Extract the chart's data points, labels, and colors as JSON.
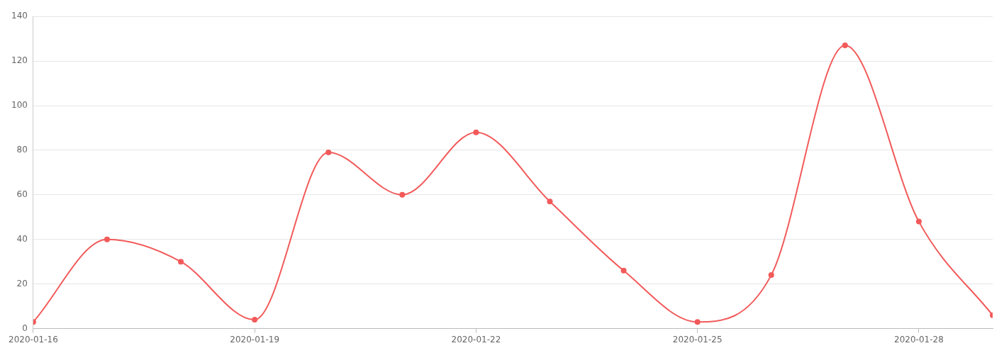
{
  "chart_data": {
    "type": "line",
    "x": [
      "2020-01-16",
      "2020-01-17",
      "2020-01-18",
      "2020-01-19",
      "2020-01-20",
      "2020-01-21",
      "2020-01-22",
      "2020-01-23",
      "2020-01-24",
      "2020-01-25",
      "2020-01-26",
      "2020-01-27",
      "2020-01-28",
      "2020-01-29"
    ],
    "series": [
      {
        "color": "#f25a5a",
        "values": [
          3,
          40,
          30,
          4,
          79,
          60,
          88,
          57,
          26,
          3,
          24,
          127,
          48,
          6
        ]
      }
    ],
    "xlim": [
      "2020-01-16",
      "2020-01-29"
    ],
    "xticks": [
      "2020-01-16",
      "2020-01-19",
      "2020-01-22",
      "2020-01-25",
      "2020-01-28"
    ],
    "ylim": [
      0,
      140
    ],
    "yticks": [
      0,
      20,
      40,
      60,
      80,
      100,
      120,
      140
    ],
    "grid": "y",
    "legend": false,
    "marker": "circle",
    "line_style": "solid"
  }
}
